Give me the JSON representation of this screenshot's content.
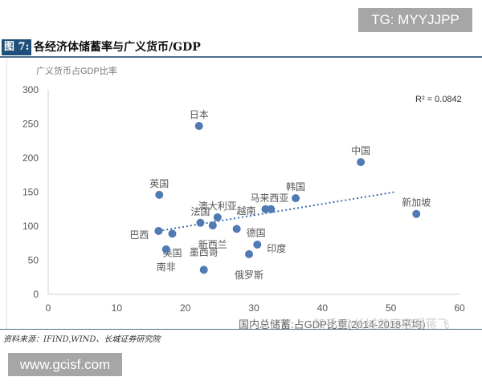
{
  "watermarks": {
    "tg": "TG: MYYJJPP",
    "site": "www.gcisf.com",
    "zhihu": "知乎 @长城首席宏观蒋飞"
  },
  "figure": {
    "number": "图 7:",
    "title": "各经济体储蓄率与广义货币/GDP",
    "source": "资料来源：IFIND,WIND、长城证券研究院"
  },
  "chart_data": {
    "type": "scatter",
    "title": "各经济体储蓄率与广义货币/GDP",
    "xlabel": "国内总储蓄:占GDP比重(2014-2018平均)",
    "ylabel": "广义货币占GDP比率",
    "xlim": [
      0,
      60
    ],
    "ylim": [
      0,
      300
    ],
    "xticks": [
      0,
      10,
      20,
      30,
      40,
      50,
      60
    ],
    "yticks": [
      0,
      50,
      100,
      150,
      200,
      250,
      300
    ],
    "grid": false,
    "legend": null,
    "marker_color": "#4f7ab3",
    "trendline": {
      "type": "linear",
      "style": "dotted",
      "r2_label": "R² = 0.0842",
      "x_start": 16.1,
      "y_start": 93,
      "x_end": 50.5,
      "y_end": 150
    },
    "points": [
      {
        "label": "日本",
        "x": 22.0,
        "y": 247
      },
      {
        "label": "中国",
        "x": 45.6,
        "y": 194
      },
      {
        "label": "英国",
        "x": 16.2,
        "y": 146
      },
      {
        "label": "韩国",
        "x": 36.1,
        "y": 141
      },
      {
        "label": "马来西亚",
        "x": 32.5,
        "y": 125
      },
      {
        "label": "越南",
        "x": 31.7,
        "y": 125
      },
      {
        "label": "新加坡",
        "x": 53.7,
        "y": 118
      },
      {
        "label": "澳大利亚",
        "x": 24.7,
        "y": 113
      },
      {
        "label": "法国",
        "x": 22.2,
        "y": 105
      },
      {
        "label": "新西兰",
        "x": 24.0,
        "y": 101
      },
      {
        "label": "德国",
        "x": 27.5,
        "y": 96
      },
      {
        "label": "巴西",
        "x": 16.1,
        "y": 93
      },
      {
        "label": "美国",
        "x": 18.1,
        "y": 89
      },
      {
        "label": "印度",
        "x": 30.5,
        "y": 73
      },
      {
        "label": "南非",
        "x": 17.2,
        "y": 66
      },
      {
        "label": "俄罗斯",
        "x": 29.3,
        "y": 59
      },
      {
        "label": "墨西哥",
        "x": 22.7,
        "y": 36
      }
    ]
  }
}
